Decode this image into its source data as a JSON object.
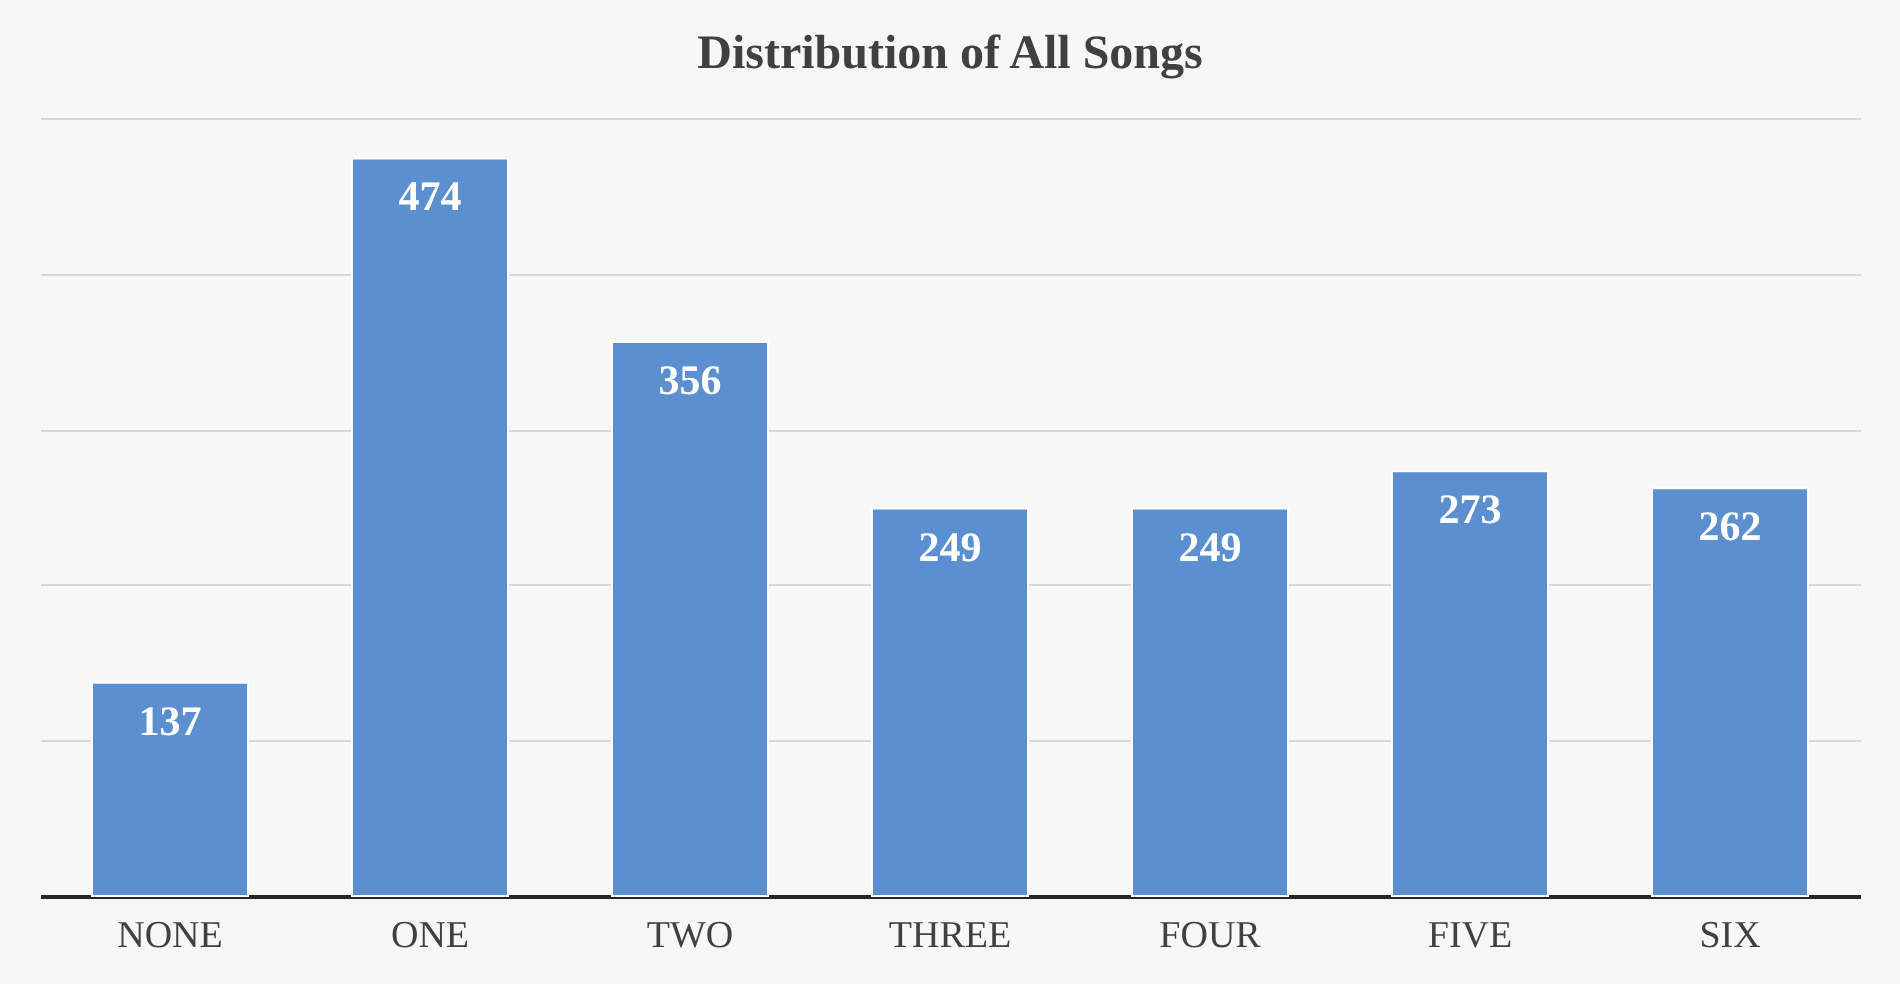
{
  "chart_data": {
    "type": "bar",
    "title": "Distribution of All Songs",
    "categories": [
      "NONE",
      "ONE",
      "TWO",
      "THREE",
      "FOUR",
      "FIVE",
      "SIX"
    ],
    "values": [
      137,
      474,
      356,
      249,
      249,
      273,
      262
    ],
    "color": "#5b8fd0",
    "ylim": [
      0,
      500
    ],
    "yticks": [
      {
        "value": 0,
        "label": null
      },
      {
        "value": 100,
        "label": null
      },
      {
        "value": 200,
        "label": null
      },
      {
        "value": 300,
        "label": null
      },
      {
        "value": 400,
        "label": null
      },
      {
        "value": 500,
        "label": null
      }
    ],
    "grid": "y",
    "tick_labels": "x",
    "data_labels": true
  }
}
